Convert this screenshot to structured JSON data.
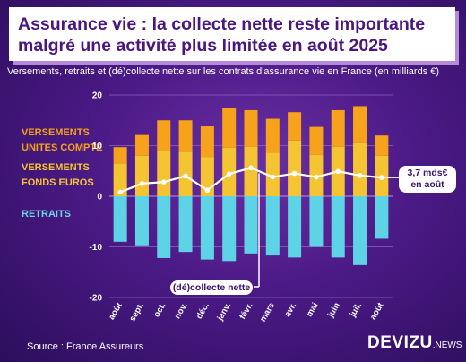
{
  "title": {
    "line1": "Assurance vie : la collecte nette reste importante",
    "line2": "malgré une activité plus limitée en août 2025"
  },
  "subtitle": "Versements, retraits et (dé)collecte nette sur les contrats d'assurance vie en France (en milliards €)",
  "legend": {
    "unites_compte": [
      "VERSEMENTS",
      "UNITES COMPTE"
    ],
    "fonds_euros": [
      "VERSEMENTS",
      "FONDS EUROS"
    ],
    "retraits": "RETRAITS"
  },
  "annotations": {
    "callout": [
      "3,7 mds€",
      "en août"
    ],
    "collecte_label": "(dé)collecte nette"
  },
  "source": "Source : France Assureurs",
  "brand": {
    "name": "DEVIZU",
    "suffix": ".NEWS"
  },
  "colors": {
    "unites_compte": "#f7a21b",
    "fonds_euros": "#f5c433",
    "retraits": "#5fd3e6",
    "collecte_line": "#ffffff",
    "background": "#4b1a86"
  },
  "chart_data": {
    "type": "bar",
    "categories": [
      "août",
      "sept.",
      "oct.",
      "nov.",
      "déc.",
      "janv.",
      "févr.",
      "mars",
      "avr.",
      "mai",
      "juin",
      "juil.",
      "août"
    ],
    "series": [
      {
        "name": "VERSEMENTS FONDS EUROS",
        "stack": "positive",
        "values": [
          6.5,
          8.0,
          9.0,
          8.8,
          7.7,
          9.6,
          9.8,
          8.6,
          11.0,
          8.2,
          9.8,
          10.5,
          8.0
        ]
      },
      {
        "name": "VERSEMENTS UNITES COMPTE",
        "stack": "positive",
        "values": [
          3.2,
          4.1,
          6.0,
          6.2,
          6.1,
          7.8,
          7.2,
          6.7,
          5.6,
          5.5,
          7.2,
          7.3,
          4.0
        ]
      },
      {
        "name": "RETRAITS",
        "stack": "negative",
        "values": [
          -9.0,
          -9.7,
          -12.2,
          -11.0,
          -12.5,
          -12.8,
          -11.3,
          -11.7,
          -12.1,
          -10.0,
          -12.1,
          -13.6,
          -8.4
        ]
      },
      {
        "name": "(dé)collecte nette",
        "type": "line",
        "values": [
          0.8,
          2.5,
          2.8,
          4.0,
          1.2,
          4.4,
          5.6,
          3.8,
          4.5,
          3.8,
          4.9,
          4.1,
          3.7
        ]
      }
    ],
    "yticks": [
      -20,
      -10,
      0,
      10,
      20
    ],
    "ylim": [
      -20,
      20
    ],
    "grid": true
  }
}
